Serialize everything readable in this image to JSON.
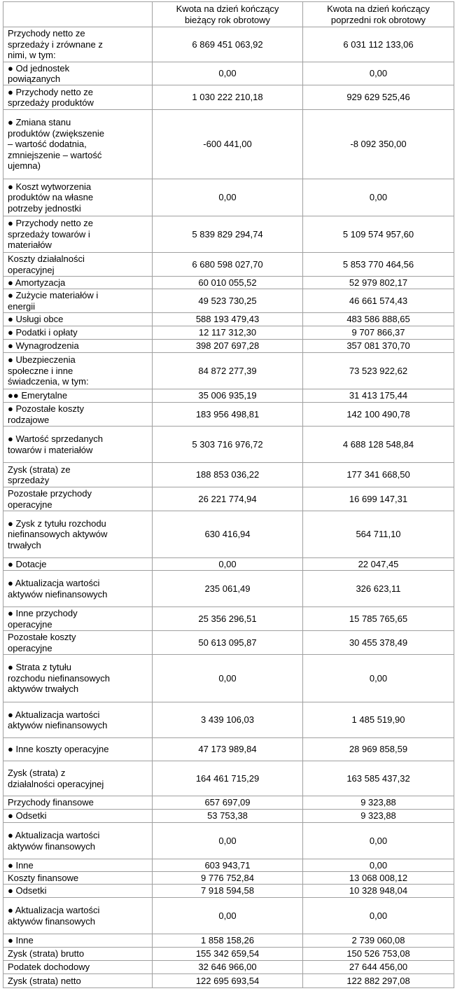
{
  "table": {
    "header": [
      "Kwota na dzień kończący bieżący rok obrotowy",
      "Kwota na dzień kończący poprzedni rok obrotowy"
    ],
    "rows": [
      [
        "Przychody netto ze sprzedaży i zrównane z nimi, w tym:",
        "6 869 451 063,92",
        "6 031 112 133,06"
      ],
      [
        "● Od jednostek powiązanych",
        "0,00",
        "0,00"
      ],
      [
        "● Przychody netto ze sprzedaży produktów",
        "1 030 222 210,18",
        "929 629 525,46"
      ],
      [
        "● Zmiana stanu produktów (zwiększenie – wartość dodatnia, zmniejszenie – wartość ujemna)",
        "-600 441,00",
        "-8 092 350,00"
      ],
      [
        "● Koszt wytworzenia produktów na własne potrzeby jednostki",
        "0,00",
        "0,00"
      ],
      [
        "● Przychody netto ze sprzedaży towarów i materiałów",
        "5 839 829 294,74",
        "5 109 574 957,60"
      ],
      [
        "Koszty działalności operacyjnej",
        "6 680 598 027,70",
        "5 853 770 464,56"
      ],
      [
        "● Amortyzacja",
        "60 010 055,52",
        "52 979 802,17"
      ],
      [
        "● Zużycie materiałów i energii",
        "49 523 730,25",
        "46 661 574,43"
      ],
      [
        "● Usługi obce",
        "588 193 479,43",
        "483 586 888,65"
      ],
      [
        "● Podatki i opłaty",
        "12 117 312,30",
        "9 707 866,37"
      ],
      [
        "● Wynagrodzenia",
        "398 207 697,28",
        "357 081 370,70"
      ],
      [
        "● Ubezpieczenia społeczne i inne świadczenia, w tym:",
        "84 872 277,39",
        "73 523 922,62"
      ],
      [
        "●● Emerytalne",
        "35 006 935,19",
        "31 413 175,44"
      ],
      [
        "● Pozostałe koszty rodzajowe",
        "183 956 498,81",
        "142 100 490,78"
      ],
      [
        "● Wartość sprzedanych towarów i materiałów",
        "5 303 716 976,72",
        "4 688 128 548,84"
      ],
      [
        "Zysk (strata) ze sprzedaży",
        "188 853 036,22",
        "177 341 668,50"
      ],
      [
        "Pozostałe przychody operacyjne",
        "26 221 774,94",
        "16 699 147,31"
      ],
      [
        "● Zysk z tytułu rozchodu niefinansowych aktywów trwałych",
        "630 416,94",
        "564 711,10"
      ],
      [
        "● Dotacje",
        "0,00",
        "22 047,45"
      ],
      [
        "● Aktualizacja wartości aktywów niefinansowych",
        "235 061,49",
        "326 623,11"
      ],
      [
        "● Inne przychody operacyjne",
        "25 356 296,51",
        "15 785 765,65"
      ],
      [
        "Pozostałe koszty operacyjne",
        "50 613 095,87",
        "30 455 378,49"
      ],
      [
        "● Strata z tytułu rozchodu niefinansowych aktywów trwałych",
        "0,00",
        "0,00"
      ],
      [
        "● Aktualizacja wartości aktywów niefinansowych",
        "3 439 106,03",
        "1 485 519,90"
      ],
      [
        "● Inne koszty operacyjne",
        "47 173 989,84",
        "28 969 858,59"
      ],
      [
        "Zysk (strata) z działalności operacyjnej",
        "164 461 715,29",
        "163 585 437,32"
      ],
      [
        "Przychody finansowe",
        "657 697,09",
        "9 323,88"
      ],
      [
        "● Odsetki",
        "53 753,38",
        "9 323,88"
      ],
      [
        "● Aktualizacja wartości aktywów finansowych",
        "0,00",
        "0,00"
      ],
      [
        "● Inne",
        "603 943,71",
        "0,00"
      ],
      [
        "Koszty finansowe",
        "9 776 752,84",
        "13 068 008,12"
      ],
      [
        "● Odsetki",
        "7 918 594,58",
        "10 328 948,04"
      ],
      [
        "● Aktualizacja wartości aktywów finansowych",
        "0,00",
        "0,00"
      ],
      [
        "● Inne",
        "1 858 158,26",
        "2 739 060,08"
      ],
      [
        "Zysk (strata) brutto",
        "155 342 659,54",
        "150 526 753,08"
      ],
      [
        "Podatek dochodowy",
        "32 646 966,00",
        "27 644 456,00"
      ],
      [
        "Zysk (strata) netto",
        "122 695 693,54",
        "122 882 297,08"
      ]
    ]
  }
}
